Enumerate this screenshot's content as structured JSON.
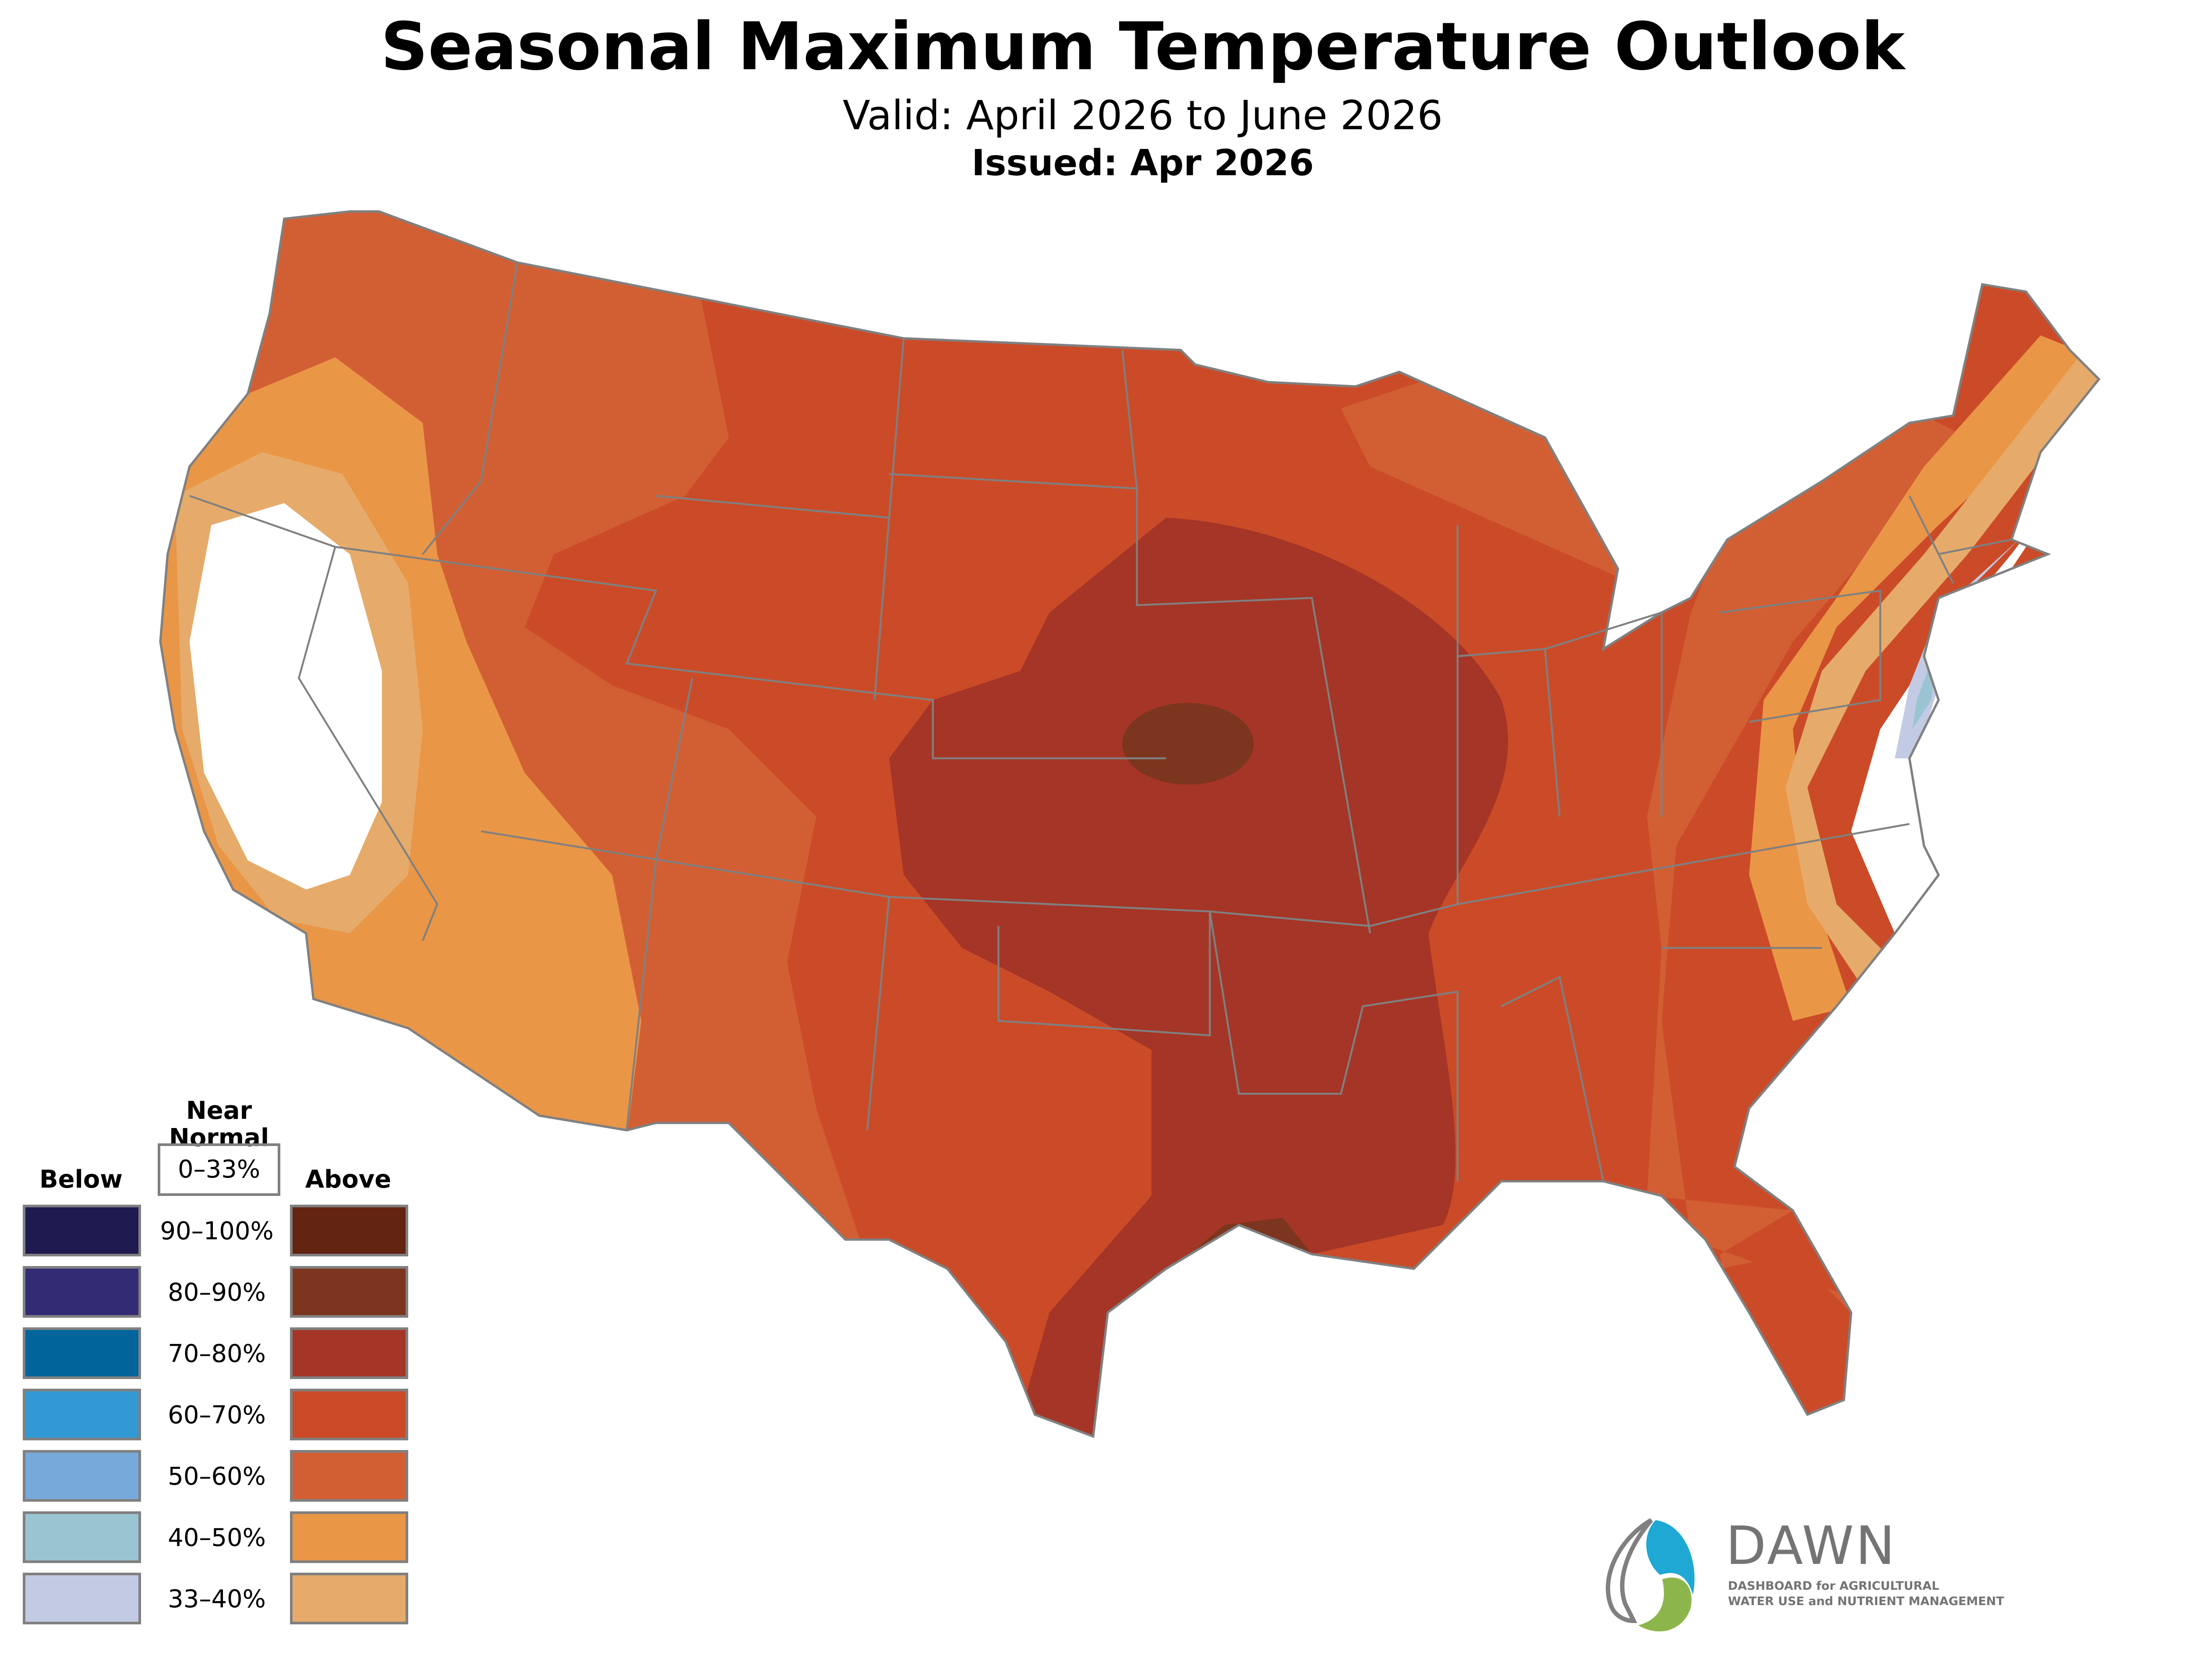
{
  "header": {
    "title": "Seasonal Maximum Temperature Outlook",
    "valid": "Valid: April 2026 to June 2026",
    "issued": "Issued: Apr 2026"
  },
  "legend": {
    "below_label": "Below",
    "near_normal_label_1": "Near",
    "near_normal_label_2": "Normal",
    "above_label": "Above",
    "near_normal_range": "0–33%",
    "rows": [
      {
        "range": "90–100%",
        "below_color": "#1f1a50",
        "above_color": "#632411"
      },
      {
        "range": "80–90%",
        "below_color": "#332c74",
        "above_color": "#7c351e"
      },
      {
        "range": "70–80%",
        "below_color": "#01659c",
        "above_color": "#a53526"
      },
      {
        "range": "60–70%",
        "below_color": "#3399d4",
        "above_color": "#cb4b28"
      },
      {
        "range": "50–60%",
        "below_color": "#77a9da",
        "above_color": "#d25f34"
      },
      {
        "range": "40–50%",
        "below_color": "#9bc4d2",
        "above_color": "#ea9647"
      },
      {
        "range": "33–40%",
        "below_color": "#c3cbe4",
        "above_color": "#e6ab6a"
      }
    ]
  },
  "logo": {
    "name": "DAWN",
    "line1": "DASHBOARD for AGRICULTURAL",
    "line2": "WATER USE and NUTRIENT MANAGEMENT"
  }
}
